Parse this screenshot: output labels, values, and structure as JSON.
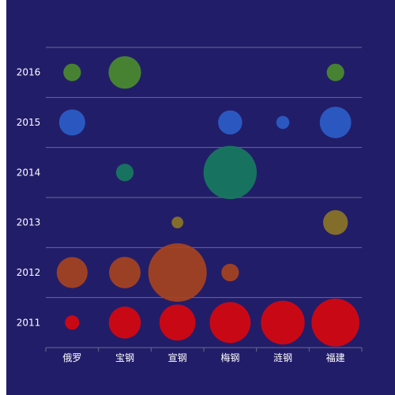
{
  "colors": {
    "background": "#221d69",
    "gridline": "#6b6a86",
    "axis": "#6b6a86",
    "label": "#ffffff"
  },
  "chart_data": {
    "type": "scatter",
    "subtype": "bubble-matrix",
    "title": "",
    "xlabel": "",
    "ylabel": "",
    "x_categories": [
      "俄罗",
      "宝钢",
      "宣钢",
      "梅钢",
      "涟钢",
      "福建"
    ],
    "y_categories": [
      "2011",
      "2012",
      "2013",
      "2014",
      "2015",
      "2016"
    ],
    "grid": true,
    "legend": "none",
    "series": [
      {
        "y": "2011",
        "color": "#d8060f",
        "points": [
          {
            "x": "俄罗",
            "value": 6
          },
          {
            "x": "宝钢",
            "value": 30
          },
          {
            "x": "宣钢",
            "value": 38
          },
          {
            "x": "梅钢",
            "value": 49
          },
          {
            "x": "涟钢",
            "value": 56
          },
          {
            "x": "福建",
            "value": 67
          }
        ]
      },
      {
        "y": "2012",
        "color": "#a74320",
        "points": [
          {
            "x": "俄罗",
            "value": 28
          },
          {
            "x": "宝钢",
            "value": 29
          },
          {
            "x": "宣钢",
            "value": 100
          },
          {
            "x": "梅钢",
            "value": 9
          }
        ]
      },
      {
        "y": "2013",
        "color": "#8c7426",
        "points": [
          {
            "x": "宣钢",
            "value": 4
          },
          {
            "x": "福建",
            "value": 18
          }
        ]
      },
      {
        "y": "2014",
        "color": "#187a5f",
        "points": [
          {
            "x": "宝钢",
            "value": 9
          },
          {
            "x": "梅钢",
            "value": 83
          }
        ]
      },
      {
        "y": "2015",
        "color": "#2d5dc8",
        "points": [
          {
            "x": "俄罗",
            "value": 20
          },
          {
            "x": "梅钢",
            "value": 17
          },
          {
            "x": "涟钢",
            "value": 5
          },
          {
            "x": "福建",
            "value": 29
          }
        ]
      },
      {
        "y": "2016",
        "color": "#4b8b2e",
        "points": [
          {
            "x": "俄罗",
            "value": 9
          },
          {
            "x": "宝钢",
            "value": 31
          },
          {
            "x": "福建",
            "value": 9
          }
        ]
      }
    ]
  }
}
